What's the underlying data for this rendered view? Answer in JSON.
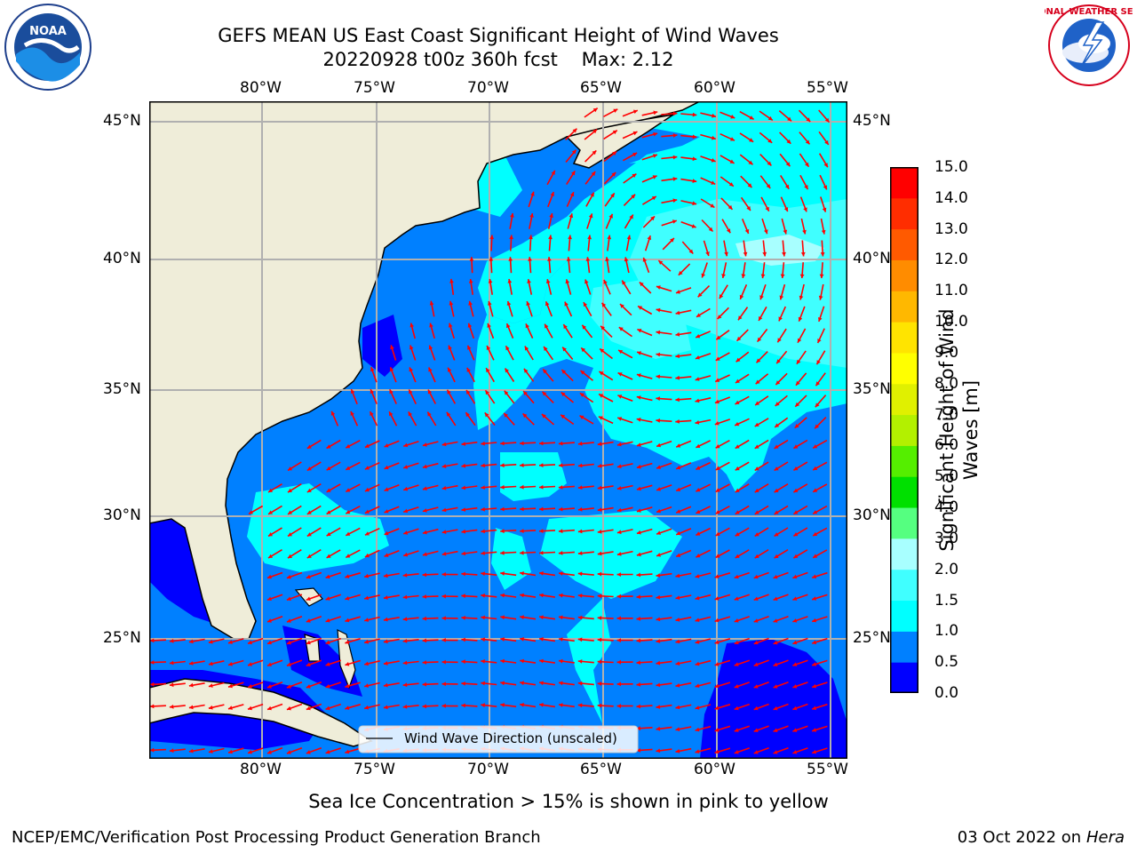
{
  "title": {
    "line1": "GEFS MEAN US East Coast Significant Height of Wind Waves",
    "line2": "20220928 t00z 360h fcst    Max: 2.12"
  },
  "logos": {
    "noaa": "NOAA",
    "nws": "NATIONAL WEATHER SERVICE"
  },
  "map": {
    "lon_labels": [
      "80°W",
      "75°W",
      "70°W",
      "65°W",
      "60°W",
      "55°W"
    ],
    "lat_labels": [
      "45°N",
      "40°N",
      "35°N",
      "30°N",
      "25°N"
    ],
    "extent": {
      "lon": [
        -85,
        -54.5
      ],
      "lat": [
        20.5,
        46
      ]
    },
    "gridlines": true,
    "colors": {
      "land": "#efedd9",
      "ice_free_ocean_low": "#0000ff",
      "ocean_mid": "#0080ff",
      "ocean_high": "#00ffff",
      "arrows": "#ff0000"
    },
    "legend": {
      "label": "Wind Wave Direction (unscaled)",
      "placement": "bottom-center"
    }
  },
  "colorbar": {
    "label": "Significant Height of Wind Waves [m]",
    "ticks": [
      "15.0",
      "14.0",
      "13.0",
      "12.0",
      "11.0",
      "10.0",
      "9.0",
      "8.0",
      "7.0",
      "6.0",
      "5.0",
      "4.0",
      "3.0",
      "2.0",
      "1.5",
      "1.0",
      "0.5",
      "0.0"
    ],
    "bins": [
      {
        "range": [
          0.0,
          0.5
        ],
        "color": "#0000ff"
      },
      {
        "range": [
          0.5,
          1.0
        ],
        "color": "#0080ff"
      },
      {
        "range": [
          1.0,
          1.5
        ],
        "color": "#00ffff"
      },
      {
        "range": [
          1.5,
          2.0
        ],
        "color": "#40ffff"
      },
      {
        "range": [
          2.0,
          3.0
        ],
        "color": "#a8ffff"
      },
      {
        "range": [
          3.0,
          4.0
        ],
        "color": "#55ff80"
      },
      {
        "range": [
          4.0,
          5.0
        ],
        "color": "#00e000"
      },
      {
        "range": [
          5.0,
          6.0
        ],
        "color": "#55ee00"
      },
      {
        "range": [
          6.0,
          7.0
        ],
        "color": "#b3f000"
      },
      {
        "range": [
          7.0,
          8.0
        ],
        "color": "#e0f000"
      },
      {
        "range": [
          8.0,
          9.0
        ],
        "color": "#ffff00"
      },
      {
        "range": [
          9.0,
          10.0
        ],
        "color": "#ffe400"
      },
      {
        "range": [
          10.0,
          11.0
        ],
        "color": "#ffb800"
      },
      {
        "range": [
          11.0,
          12.0
        ],
        "color": "#ff8c00"
      },
      {
        "range": [
          12.0,
          13.0
        ],
        "color": "#ff5a00"
      },
      {
        "range": [
          13.0,
          14.0
        ],
        "color": "#ff2d00"
      },
      {
        "range": [
          14.0,
          15.0
        ],
        "color": "#ff0000"
      }
    ]
  },
  "notes": {
    "ice": "Sea Ice Concentration > 15% is shown in pink to yellow",
    "branch": "NCEP/EMC/Verification Post Processing Product Generation Branch",
    "date": "03 Oct 2022 on ",
    "machine": "Hera"
  }
}
